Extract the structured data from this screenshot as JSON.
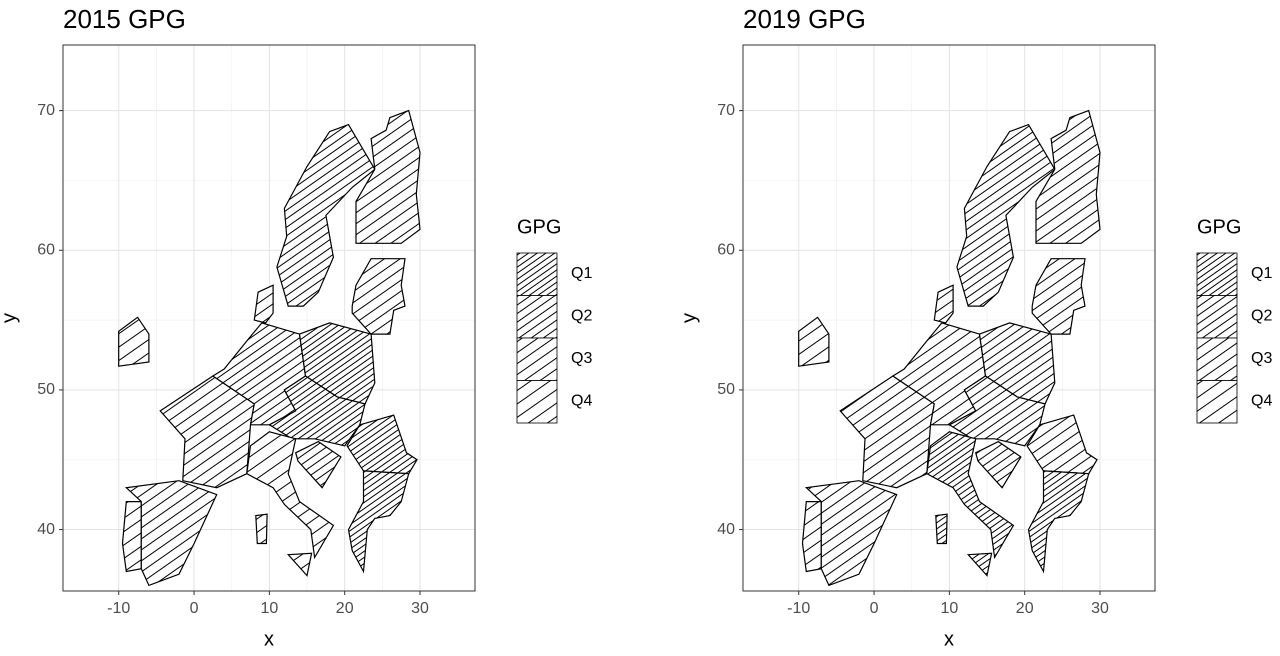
{
  "chart_data": [
    {
      "type": "map",
      "title": "2015 GPG",
      "x_label": "x",
      "y_label": "y",
      "xlim": [
        -17.4,
        37.3
      ],
      "ylim": [
        35.6,
        74.7
      ],
      "xticks": [
        -10,
        0,
        10,
        20,
        30
      ],
      "yticks": [
        40,
        50,
        60,
        70
      ],
      "grid": true,
      "legend_title": "GPG",
      "legend": [
        "Q1",
        "Q2",
        "Q3",
        "Q4"
      ]
    },
    {
      "type": "map",
      "title": "2019 GPG",
      "x_label": "x",
      "y_label": "y",
      "xlim": [
        -17.4,
        37.3
      ],
      "ylim": [
        35.6,
        74.7
      ],
      "xticks": [
        -10,
        0,
        10,
        20,
        30
      ],
      "yticks": [
        40,
        50,
        60,
        70
      ],
      "grid": true,
      "legend_title": "GPG",
      "legend": [
        "Q1",
        "Q2",
        "Q3",
        "Q4"
      ]
    }
  ]
}
